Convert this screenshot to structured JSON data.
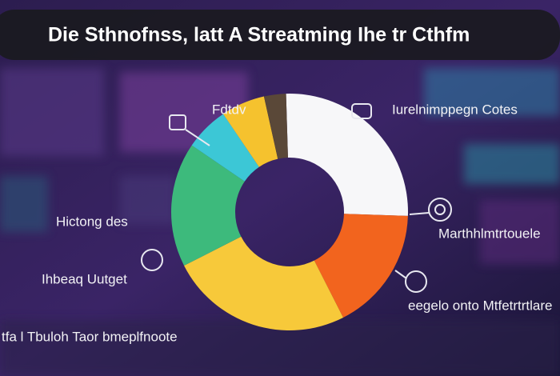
{
  "chart_data": {
    "type": "donut",
    "title": "Die Sthnofnss, latt A Streatming Ihe tr Cthfm",
    "categories": [
      "Iurelnimppegn Cotes",
      "Marthhlmtrtouele",
      "eegelo onto Mtfetrtrtlare",
      "Hictong des",
      null,
      "Fdtdv",
      null
    ],
    "values": [
      26,
      17,
      25,
      17,
      6,
      6,
      3
    ],
    "colors": [
      "#f7f7f9",
      "#f2641e",
      "#f7c93a",
      "#3dba7c",
      "#3cc7d6",
      "#f5c22e",
      "#5a4838"
    ],
    "annotations": [
      "Ihbeaq Uutget",
      "tfa l Tbuloh Taor bmeplfnoote"
    ]
  }
}
